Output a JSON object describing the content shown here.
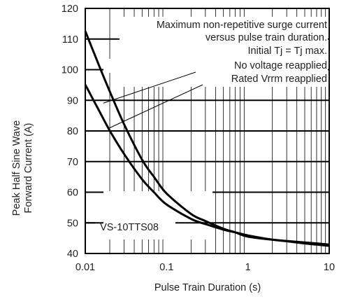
{
  "chart_data": {
    "type": "line",
    "x_scale": "log",
    "xlim": [
      0.01,
      10
    ],
    "ylim": [
      40,
      120
    ],
    "xlabel": "Pulse Train Duration (s)",
    "ylabel": [
      "Peak Half Sine Wave",
      "Forward Current (A)"
    ],
    "x_ticks": [
      {
        "value": 0.01,
        "label": "0.01"
      },
      {
        "value": 0.1,
        "label": "0.1"
      },
      {
        "value": 1,
        "label": "1"
      },
      {
        "value": 10,
        "label": "10"
      }
    ],
    "y_ticks": [
      {
        "value": 40,
        "label": "40"
      },
      {
        "value": 50,
        "label": "50"
      },
      {
        "value": 60,
        "label": "60"
      },
      {
        "value": 70,
        "label": "70"
      },
      {
        "value": 80,
        "label": "80"
      },
      {
        "value": 90,
        "label": "90"
      },
      {
        "value": 100,
        "label": "100"
      },
      {
        "value": 110,
        "label": "110"
      },
      {
        "value": 120,
        "label": "120"
      }
    ],
    "annotations": [
      "Maximum non-repetitive surge current",
      "versus pulse train duration.",
      "Initial Tj = Tj max.",
      "No voltage reapplied",
      "Rated Vrrm reapplied"
    ],
    "part_label": "VS-10TTS08",
    "series": [
      {
        "x": [
          0.01,
          0.015,
          0.02,
          0.03,
          0.05,
          0.07,
          0.1,
          0.2,
          0.3,
          0.5,
          0.7,
          1,
          2,
          3,
          5,
          7,
          10
        ],
        "y": [
          112.6,
          100.9,
          92.9,
          82.2,
          70.6,
          65,
          59.6,
          52.9,
          50.6,
          48.1,
          46.9,
          45.5,
          44.5,
          44.1,
          43.6,
          43.3,
          42.9
        ]
      },
      {
        "x": [
          0.01,
          0.015,
          0.02,
          0.03,
          0.05,
          0.07,
          0.1,
          0.2,
          0.3,
          0.5,
          0.7,
          1,
          2,
          3,
          5,
          7,
          10
        ],
        "y": [
          95.1,
          86.3,
          80.1,
          72.5,
          64.2,
          60,
          56,
          51.3,
          49.6,
          47.8,
          46.9,
          45.9,
          44.5,
          44,
          43.3,
          42.9,
          42.5
        ]
      }
    ]
  }
}
